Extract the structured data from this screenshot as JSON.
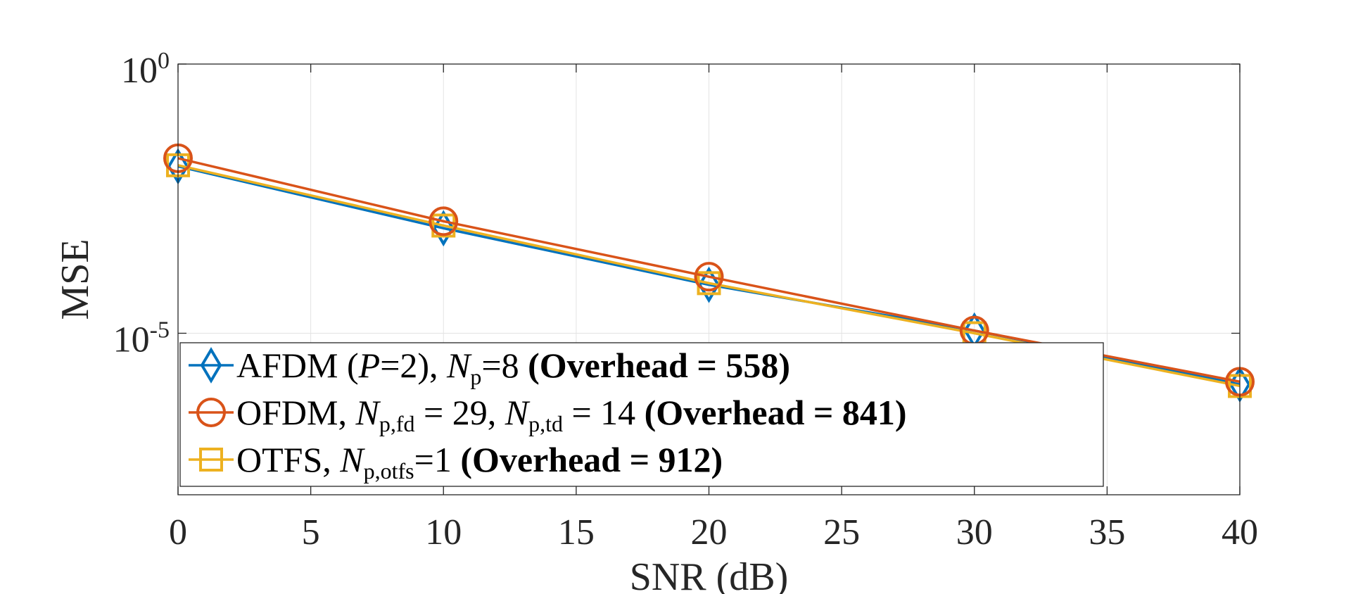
{
  "chart_data": {
    "type": "line",
    "title": "",
    "xlabel": "SNR (dB)",
    "ylabel": "MSE",
    "xlim": [
      0,
      40
    ],
    "ylim_log10": [
      -8,
      0
    ],
    "yscale": "log",
    "grid": true,
    "legend_location": "bottom-left",
    "x_ticks": [
      "0",
      "5",
      "10",
      "15",
      "20",
      "25",
      "30",
      "35",
      "40"
    ],
    "y_ticks": [
      {
        "base": "10",
        "exp": "0",
        "value": 1
      },
      {
        "base": "10",
        "exp": "-5",
        "value": 1e-05
      }
    ],
    "x": [
      0,
      10,
      20,
      30,
      40
    ],
    "series": [
      {
        "name": "AFDM",
        "marker": "diamond",
        "color": "#0072BD",
        "log10_values": [
          -1.9,
          -3.05,
          -4.1,
          -4.95,
          -5.95
        ],
        "values": [
          0.0126,
          0.00089,
          7.94e-05,
          1.12e-05,
          1.12e-06
        ],
        "legend": {
          "text1": "AFDM (",
          "pvar": "P",
          "text2": "=2), ",
          "nvar": "N",
          "nsub": "p",
          "text3": "=8 ",
          "overhead": "(Overhead = 558)"
        }
      },
      {
        "name": "OFDM",
        "marker": "circle",
        "color": "#D95319",
        "log10_values": [
          -1.75,
          -2.92,
          -3.95,
          -4.95,
          -5.9
        ],
        "values": [
          0.0178,
          0.0012,
          0.000112,
          1.12e-05,
          1.26e-06
        ],
        "legend": {
          "text1": "OFDM, ",
          "nvar1": "N",
          "nsub1": "p,fd",
          "text2": " = 29, ",
          "nvar2": "N",
          "nsub2": "p,td",
          "text3": " = 14 ",
          "overhead": "(Overhead = 841)"
        }
      },
      {
        "name": "OTFS",
        "marker": "square",
        "color": "#EDB120",
        "log10_values": [
          -1.88,
          -3.0,
          -4.07,
          -5.0,
          -5.98
        ],
        "values": [
          0.0132,
          0.001,
          8.51e-05,
          1e-05,
          1.05e-06
        ],
        "legend": {
          "text1": "OTFS, ",
          "nvar": "N",
          "nsub": "p,otfs",
          "text2": "=1 ",
          "overhead": "(Overhead = 912)"
        }
      }
    ]
  }
}
